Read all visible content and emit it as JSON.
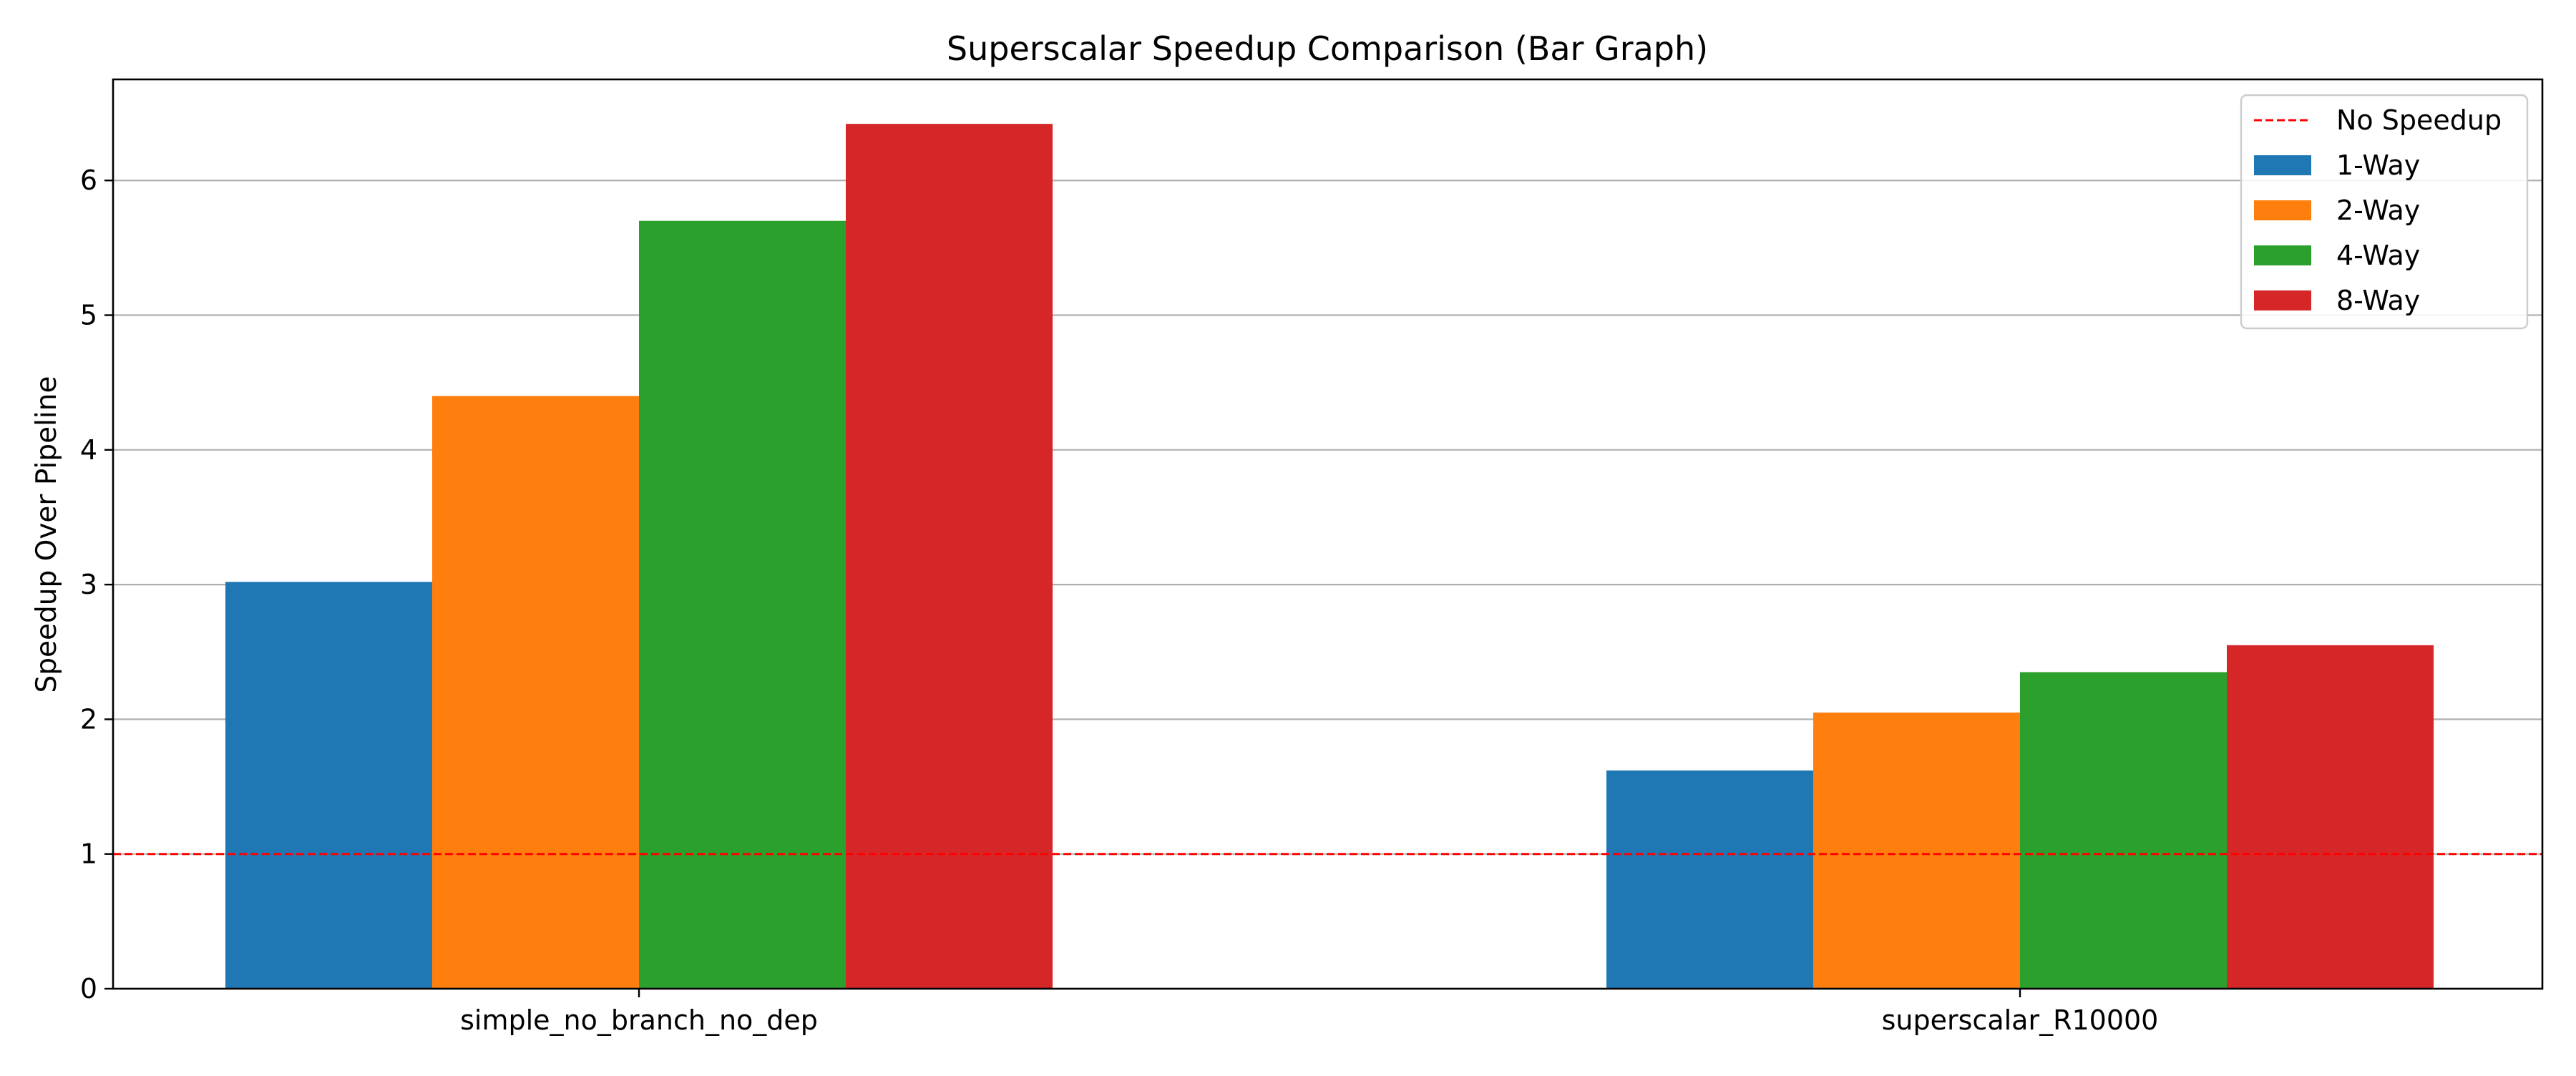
{
  "chart_data": {
    "type": "bar",
    "title": "Superscalar Speedup Comparison (Bar Graph)",
    "xlabel": "",
    "ylabel": "Speedup Over Pipeline",
    "categories": [
      "simple_no_branch_no_dep",
      "superscalar_R10000"
    ],
    "series": [
      {
        "name": "1-Way",
        "values": [
          3.02,
          1.62
        ],
        "color": "#1f77b4"
      },
      {
        "name": "2-Way",
        "values": [
          4.4,
          2.05
        ],
        "color": "#ff7f0e"
      },
      {
        "name": "4-Way",
        "values": [
          5.7,
          2.35
        ],
        "color": "#2ca02c"
      },
      {
        "name": "8-Way",
        "values": [
          6.42,
          2.55
        ],
        "color": "#d62728"
      }
    ],
    "reference_line": {
      "name": "No Speedup",
      "value": 1,
      "color": "#ff0000",
      "style": "dashed"
    },
    "ylim": [
      0,
      6.75
    ],
    "yticks": [
      0,
      1,
      2,
      3,
      4,
      5,
      6
    ],
    "grid": "horizontal",
    "legend_position": "top-right"
  }
}
